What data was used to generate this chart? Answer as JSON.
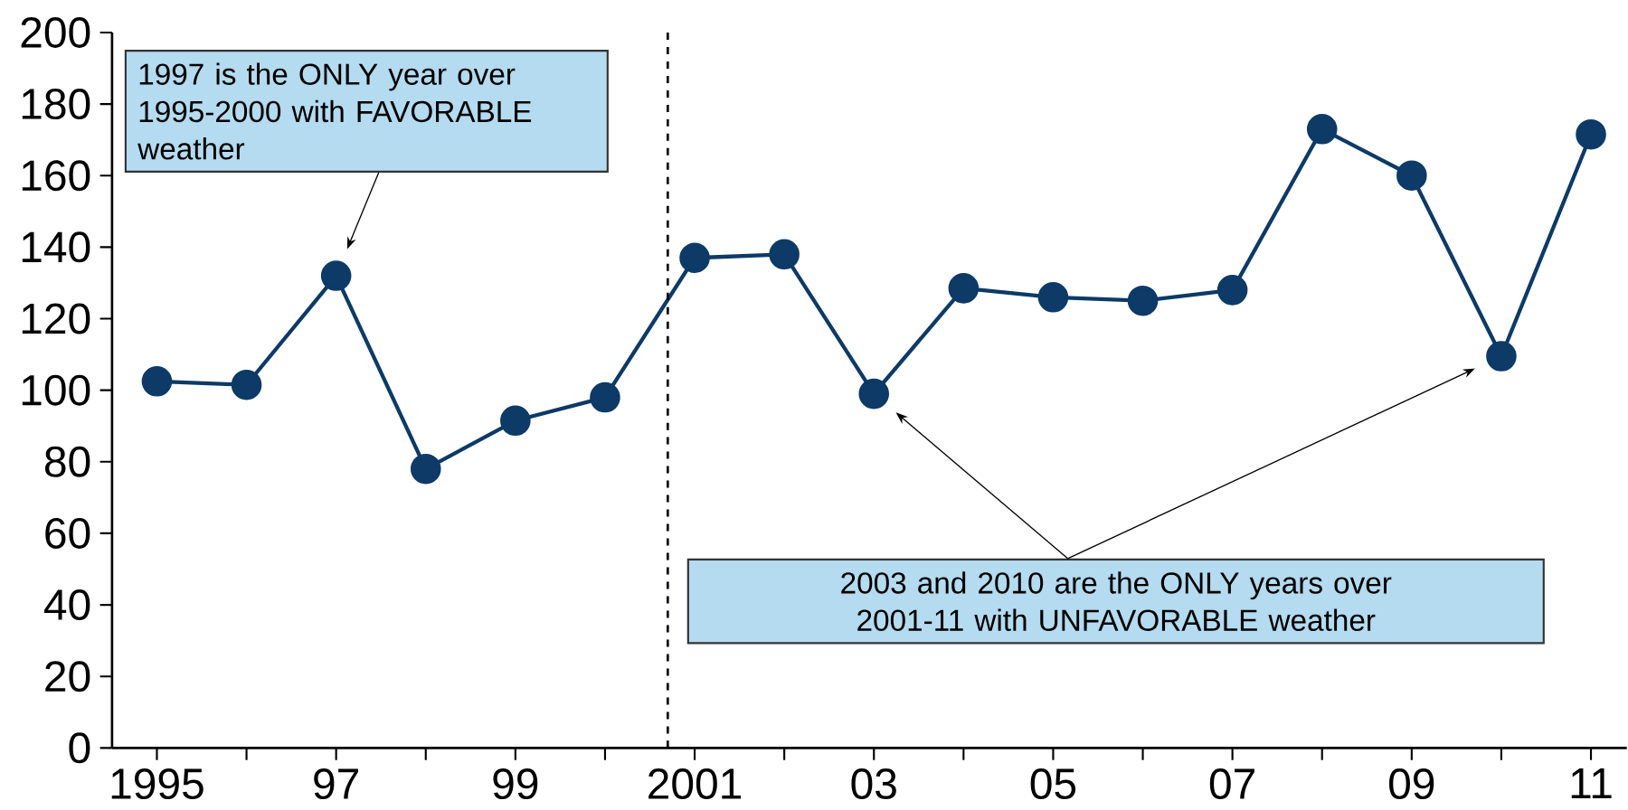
{
  "chart_data": {
    "type": "line",
    "x": [
      1995,
      1996,
      1997,
      1998,
      1999,
      2000,
      2001,
      2002,
      2003,
      2004,
      2005,
      2006,
      2007,
      2008,
      2009,
      2010,
      2011
    ],
    "series": [
      {
        "color": "#0d3a66",
        "values": [
          102.5,
          101.5,
          132,
          78,
          91.5,
          98,
          137,
          138,
          99,
          128.5,
          126,
          125,
          128,
          173,
          160,
          109.5,
          171.5
        ]
      }
    ],
    "xlim": [
      1994.5,
      2011.4
    ],
    "xticks": [
      {
        "value": 1995,
        "label": "1995"
      },
      {
        "value": 1996,
        "label": null
      },
      {
        "value": 1997,
        "label": "97"
      },
      {
        "value": 1998,
        "label": null
      },
      {
        "value": 1999,
        "label": "99"
      },
      {
        "value": 2000,
        "label": null
      },
      {
        "value": 2001,
        "label": "2001"
      },
      {
        "value": 2002,
        "label": null
      },
      {
        "value": 2003,
        "label": "03"
      },
      {
        "value": 2004,
        "label": null
      },
      {
        "value": 2005,
        "label": "05"
      },
      {
        "value": 2006,
        "label": null
      },
      {
        "value": 2007,
        "label": "07"
      },
      {
        "value": 2008,
        "label": null
      },
      {
        "value": 2009,
        "label": "09"
      },
      {
        "value": 2010,
        "label": null
      },
      {
        "value": 2011,
        "label": "11"
      }
    ],
    "ylim": [
      0,
      200
    ],
    "yticks": [
      0,
      20,
      40,
      60,
      80,
      100,
      120,
      140,
      160,
      180,
      200
    ],
    "ref_lines": [
      {
        "axis": "x",
        "value": 2000.7,
        "line_style": "dashed",
        "color": "#000000"
      }
    ],
    "annotations": [
      "1997 is the ONLY year over 1995-2000 with FAVORABLE weather",
      "2003 and 2010 are the ONLY years over 2001-11 with UNFAVORABLE weather"
    ],
    "marker": "circle",
    "line_style": "solid",
    "grid": false
  }
}
